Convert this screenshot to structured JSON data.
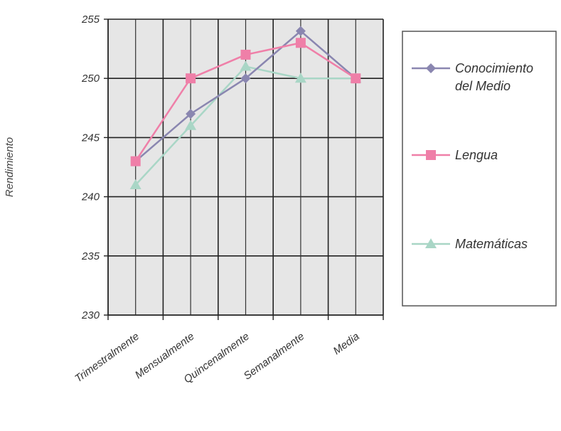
{
  "chart_data": {
    "type": "line",
    "ylabel": "Rendimiento",
    "xlabel": "",
    "categories": [
      "Trimestralmente",
      "Mensualmente",
      "Quincenalmente",
      "Semanalmente",
      "Media"
    ],
    "ylim": [
      230,
      255
    ],
    "yticks": [
      230,
      235,
      240,
      245,
      250,
      255
    ],
    "grid": true,
    "legend_position": "right",
    "series": [
      {
        "name": "Conocimiento del Medio",
        "name_lines": [
          "Conocimiento",
          "del Medio"
        ],
        "marker": "diamond",
        "color": "#8a86b0",
        "values": [
          243,
          247,
          250,
          254,
          250
        ]
      },
      {
        "name": "Lengua",
        "name_lines": [
          "Lengua"
        ],
        "marker": "square",
        "color": "#ef7fa8",
        "values": [
          243,
          250,
          252,
          253,
          250
        ]
      },
      {
        "name": "Matemáticas",
        "name_lines": [
          "Matemáticas"
        ],
        "marker": "triangle",
        "color": "#a9d6c6",
        "values": [
          241,
          246,
          251,
          250,
          250
        ]
      }
    ]
  }
}
